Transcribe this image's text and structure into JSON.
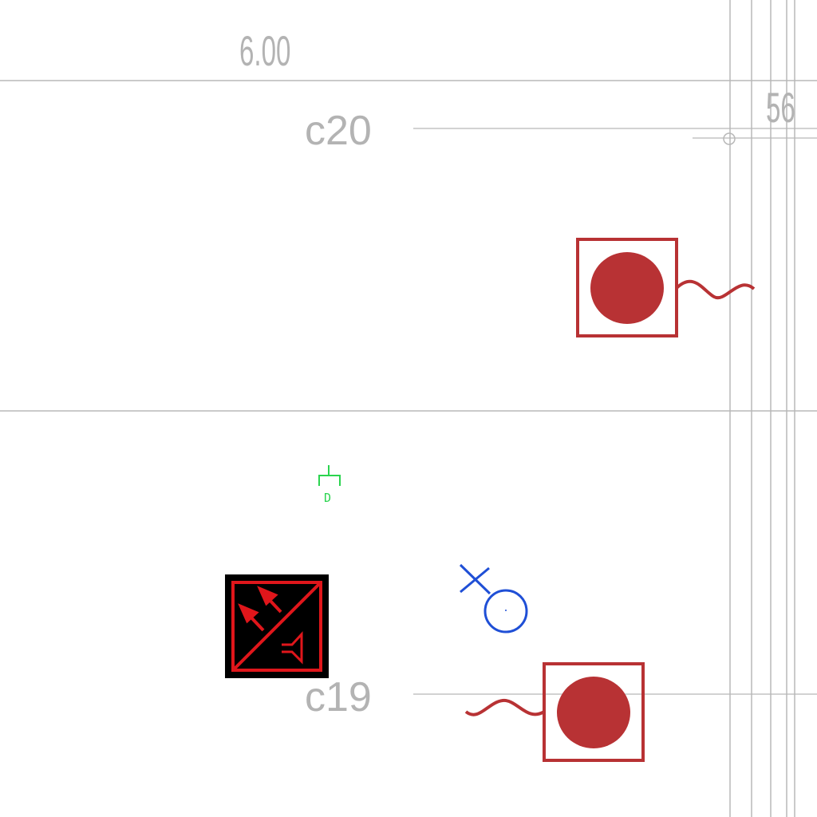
{
  "labels": {
    "dimension_value": "6.00",
    "column_top": "c20",
    "column_bottom": "c19",
    "edge_value": "56",
    "sensor_code": "D"
  },
  "colors": {
    "background": "#ffffff",
    "grid_line": "#b8b8b8",
    "label_gray": "#b3b3b3",
    "device_red": "#b83234",
    "panel_black": "#000000",
    "panel_red": "#e0161b",
    "sensor_green": "#2bd44f",
    "outlet_blue": "#1f4fd6"
  },
  "symbols": [
    {
      "name": "indicator-light-icon-upper",
      "kind": "indicator light with wave"
    },
    {
      "name": "indicator-light-icon-lower",
      "kind": "indicator light with wave"
    },
    {
      "name": "fire-alarm-panel-icon",
      "kind": "alarm/speaker panel"
    },
    {
      "name": "detector-icon",
      "kind": "detector"
    },
    {
      "name": "outlet-icon",
      "kind": "circle with cross"
    }
  ]
}
